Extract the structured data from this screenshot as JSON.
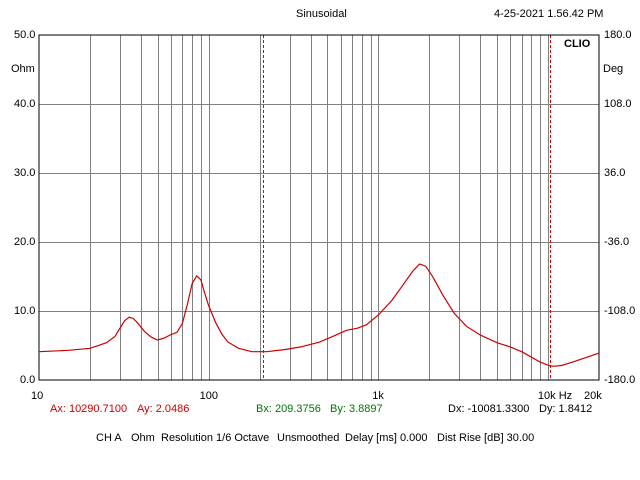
{
  "header": {
    "title": "Sinusoidal",
    "timestamp": "4-25-2021 1.56.42 PM",
    "brand": "CLIO"
  },
  "left_axis_unit": "Ohm",
  "right_axis_unit": "Deg",
  "cursors": {
    "a": {
      "ax": "Ax: 10290.7100",
      "ay": "Ay: 2.0486",
      "color": "#cc0000"
    },
    "b": {
      "bx": "Bx: 209.3756",
      "by": "By: 3.8897",
      "color": "#007700"
    },
    "delta": {
      "dx": "Dx: -10081.3300",
      "dy": "Dy: 1.8412"
    }
  },
  "footer": {
    "channel": "CH A",
    "unit": "Ohm",
    "resolution": "Resolution 1/6 Octave",
    "smoothing": "Unsmoothed",
    "delay": "Delay [ms] 0.000",
    "dist_rise": "Dist Rise [dB] 30.00"
  },
  "chart_data": {
    "type": "line",
    "x_scale": "log",
    "xlim": [
      10,
      20000
    ],
    "ylim": [
      0,
      50
    ],
    "y2lim": [
      -180,
      180
    ],
    "grid": true,
    "x_tick_labels": [
      {
        "value": 10,
        "label": "10"
      },
      {
        "value": 100,
        "label": "100"
      },
      {
        "value": 1000,
        "label": "1k"
      },
      {
        "value": 10000,
        "label": "10k Hz"
      },
      {
        "value": 20000,
        "label": "20k"
      }
    ],
    "y_tick_labels": [
      {
        "value": 50,
        "label": "50.0"
      },
      {
        "value": 40,
        "label": "40.0"
      },
      {
        "value": 30,
        "label": "30.0"
      },
      {
        "value": 20,
        "label": "20.0"
      },
      {
        "value": 10,
        "label": "10.0"
      },
      {
        "value": 0,
        "label": "0.0"
      }
    ],
    "y2_tick_labels": [
      {
        "value": 180,
        "label": "180.0"
      },
      {
        "value": 108,
        "label": "108.0"
      },
      {
        "value": 36,
        "label": "36.0"
      },
      {
        "value": -36,
        "label": "-36.0"
      },
      {
        "value": -108,
        "label": "-108.0"
      },
      {
        "value": -180,
        "label": "-180.0"
      }
    ],
    "cursor_a_x": 10290.71,
    "cursor_b_x": 209.3756,
    "series": [
      {
        "color": "#cc0000",
        "points": [
          [
            10,
            4.1
          ],
          [
            15,
            4.3
          ],
          [
            20,
            4.6
          ],
          [
            25,
            5.4
          ],
          [
            28,
            6.3
          ],
          [
            30,
            7.5
          ],
          [
            32,
            8.6
          ],
          [
            34,
            9.1
          ],
          [
            36,
            8.9
          ],
          [
            38,
            8.3
          ],
          [
            42,
            7.0
          ],
          [
            46,
            6.2
          ],
          [
            50,
            5.8
          ],
          [
            55,
            6.1
          ],
          [
            60,
            6.6
          ],
          [
            65,
            6.9
          ],
          [
            70,
            8.2
          ],
          [
            75,
            11.0
          ],
          [
            80,
            14.0
          ],
          [
            85,
            15.1
          ],
          [
            90,
            14.5
          ],
          [
            95,
            12.5
          ],
          [
            100,
            10.8
          ],
          [
            110,
            8.3
          ],
          [
            120,
            6.6
          ],
          [
            130,
            5.5
          ],
          [
            150,
            4.6
          ],
          [
            180,
            4.1
          ],
          [
            220,
            4.1
          ],
          [
            280,
            4.4
          ],
          [
            350,
            4.8
          ],
          [
            450,
            5.5
          ],
          [
            550,
            6.4
          ],
          [
            650,
            7.2
          ],
          [
            750,
            7.5
          ],
          [
            850,
            8.0
          ],
          [
            1000,
            9.4
          ],
          [
            1200,
            11.5
          ],
          [
            1400,
            13.8
          ],
          [
            1600,
            15.8
          ],
          [
            1750,
            16.8
          ],
          [
            1900,
            16.5
          ],
          [
            2100,
            14.9
          ],
          [
            2400,
            12.3
          ],
          [
            2800,
            9.7
          ],
          [
            3300,
            7.8
          ],
          [
            4000,
            6.5
          ],
          [
            5000,
            5.4
          ],
          [
            6000,
            4.8
          ],
          [
            7000,
            4.1
          ],
          [
            8000,
            3.3
          ],
          [
            9000,
            2.6
          ],
          [
            10290,
            2.05
          ],
          [
            11000,
            2.0
          ],
          [
            12000,
            2.1
          ],
          [
            14000,
            2.6
          ],
          [
            17000,
            3.3
          ],
          [
            20000,
            3.9
          ]
        ]
      }
    ]
  }
}
